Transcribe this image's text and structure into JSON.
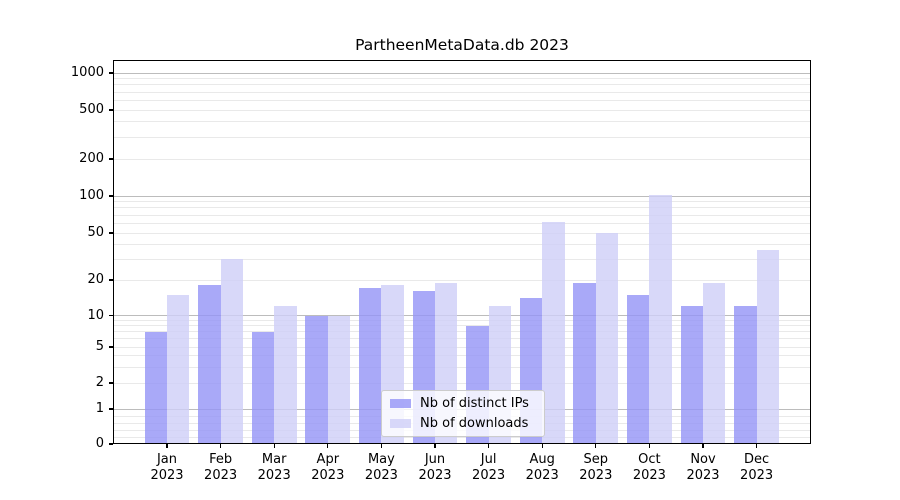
{
  "title": "PartheenMetaData.db 2023",
  "colors": {
    "distinct_ips_bar": "rgba(147,147,246,0.8)",
    "downloads_bar": "rgba(206,206,248,0.8)",
    "distinct_ips_hex_on_white": "#a8a8f7",
    "downloads_hex_on_white": "#d8d8f9",
    "grid_major": "#bcbcbc",
    "grid_minor": "#e9e9e9",
    "axis": "#000000"
  },
  "legend": {
    "items": [
      {
        "label": "Nb of distinct IPs",
        "series": "distinct_ips"
      },
      {
        "label": "Nb of downloads",
        "series": "downloads"
      }
    ]
  },
  "y_axis": {
    "tick_labels": [
      "0",
      "1",
      "2",
      "5",
      "10",
      "20",
      "50",
      "100",
      "200",
      "500",
      "1000"
    ],
    "tick_values": [
      0,
      1,
      2,
      5,
      10,
      20,
      50,
      100,
      200,
      500,
      1000
    ],
    "minor_values": [
      0.2,
      0.4,
      0.6,
      0.8,
      3,
      4,
      6,
      7,
      8,
      9,
      30,
      40,
      60,
      70,
      80,
      90,
      300,
      400,
      600,
      700,
      800,
      900
    ]
  },
  "x_axis": {
    "months": [
      "Jan",
      "Feb",
      "Mar",
      "Apr",
      "May",
      "Jun",
      "Jul",
      "Aug",
      "Sep",
      "Oct",
      "Nov",
      "Dec"
    ],
    "year": "2023"
  },
  "chart_data": {
    "type": "bar",
    "title": "PartheenMetaData.db 2023",
    "categories": [
      "Jan 2023",
      "Feb 2023",
      "Mar 2023",
      "Apr 2023",
      "May 2023",
      "Jun 2023",
      "Jul 2023",
      "Aug 2023",
      "Sep 2023",
      "Oct 2023",
      "Nov 2023",
      "Dec 2023"
    ],
    "series": [
      {
        "name": "Nb of distinct IPs",
        "values": [
          7,
          18,
          7,
          10,
          17,
          16,
          8,
          14,
          19,
          15,
          12,
          12
        ]
      },
      {
        "name": "Nb of downloads",
        "values": [
          15,
          30,
          12,
          10,
          18,
          19,
          12,
          62,
          50,
          102,
          19,
          36
        ]
      }
    ],
    "yscale": "symlog-like",
    "y_ticks": [
      0,
      1,
      2,
      5,
      10,
      20,
      50,
      100,
      200,
      500,
      1000
    ],
    "ylim": [
      0,
      1200
    ],
    "grid": true,
    "legend_position": "lower center"
  }
}
